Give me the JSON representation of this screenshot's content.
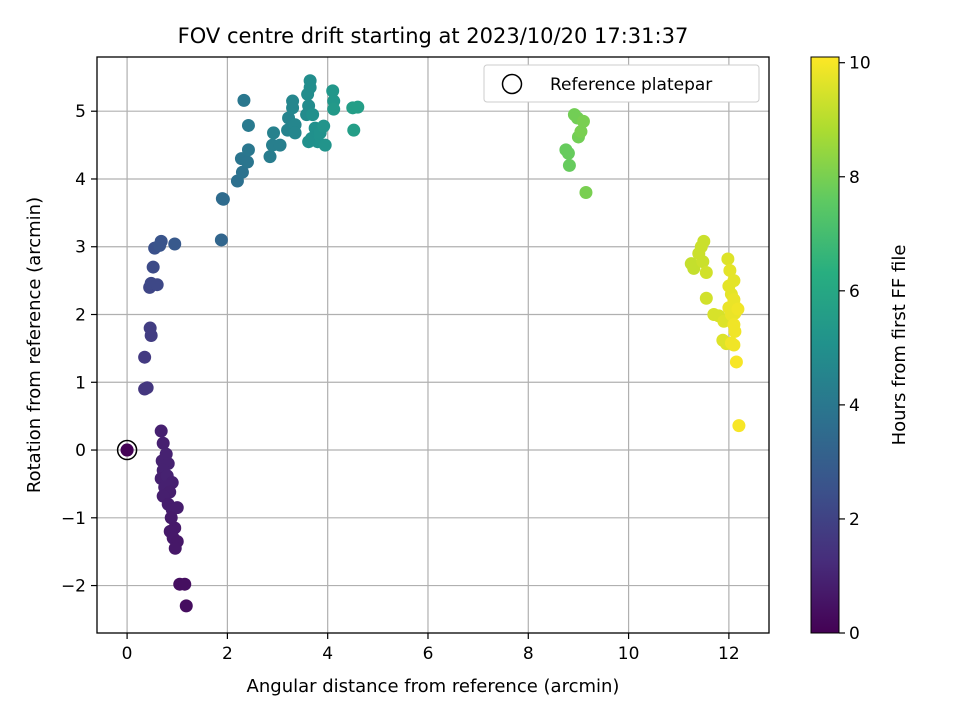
{
  "chart_data": {
    "type": "scatter",
    "title": "FOV centre drift starting at 2023/10/20 17:31:37",
    "xlabel": "Angular distance from reference (arcmin)",
    "ylabel": "Rotation from reference (arcmin)",
    "xlim": [
      -0.6,
      12.8
    ],
    "ylim": [
      -2.7,
      5.8
    ],
    "xticks": [
      0,
      2,
      4,
      6,
      8,
      10,
      12
    ],
    "yticks": [
      -2,
      -1,
      0,
      1,
      2,
      3,
      4,
      5
    ],
    "grid": true,
    "legend": {
      "position": "top-right",
      "entries": [
        "Reference platepar"
      ]
    },
    "reference_point": {
      "x": 0,
      "y": 0
    },
    "colorbar": {
      "label": "Hours from first FF file",
      "range": [
        0,
        10.1
      ],
      "ticks": [
        0,
        2,
        4,
        6,
        8,
        10
      ],
      "colormap": "viridis"
    },
    "points": [
      {
        "x": 0.0,
        "y": 0.0,
        "t": 0.0
      },
      {
        "x": 0.0,
        "y": 0.0,
        "t": 0.05
      },
      {
        "x": 0.68,
        "y": 0.28,
        "t": 0.9
      },
      {
        "x": 0.72,
        "y": 0.1,
        "t": 0.9
      },
      {
        "x": 0.78,
        "y": -0.06,
        "t": 0.95
      },
      {
        "x": 0.7,
        "y": -0.16,
        "t": 0.95
      },
      {
        "x": 0.82,
        "y": -0.2,
        "t": 0.95
      },
      {
        "x": 0.72,
        "y": -0.3,
        "t": 0.95
      },
      {
        "x": 0.68,
        "y": -0.42,
        "t": 0.9
      },
      {
        "x": 0.8,
        "y": -0.38,
        "t": 0.95
      },
      {
        "x": 0.9,
        "y": -0.48,
        "t": 0.9
      },
      {
        "x": 0.75,
        "y": -0.55,
        "t": 0.9
      },
      {
        "x": 0.85,
        "y": -0.62,
        "t": 0.85
      },
      {
        "x": 0.72,
        "y": -0.68,
        "t": 0.85
      },
      {
        "x": 0.82,
        "y": -0.8,
        "t": 0.8
      },
      {
        "x": 0.9,
        "y": -0.88,
        "t": 0.8
      },
      {
        "x": 1.0,
        "y": -0.85,
        "t": 0.8
      },
      {
        "x": 0.88,
        "y": -1.0,
        "t": 0.75
      },
      {
        "x": 0.95,
        "y": -1.15,
        "t": 0.7
      },
      {
        "x": 0.86,
        "y": -1.2,
        "t": 0.7
      },
      {
        "x": 0.92,
        "y": -1.3,
        "t": 0.7
      },
      {
        "x": 1.0,
        "y": -1.35,
        "t": 0.65
      },
      {
        "x": 0.96,
        "y": -1.45,
        "t": 0.65
      },
      {
        "x": 1.05,
        "y": -1.98,
        "t": 0.4
      },
      {
        "x": 1.15,
        "y": -1.98,
        "t": 0.4
      },
      {
        "x": 1.18,
        "y": -2.3,
        "t": 0.35
      },
      {
        "x": 0.35,
        "y": 0.9,
        "t": 1.6
      },
      {
        "x": 0.4,
        "y": 0.92,
        "t": 1.6
      },
      {
        "x": 0.35,
        "y": 1.37,
        "t": 1.7
      },
      {
        "x": 0.48,
        "y": 1.69,
        "t": 1.8
      },
      {
        "x": 0.46,
        "y": 1.8,
        "t": 1.8
      },
      {
        "x": 0.45,
        "y": 2.4,
        "t": 2.1
      },
      {
        "x": 0.48,
        "y": 2.46,
        "t": 2.2
      },
      {
        "x": 0.6,
        "y": 2.44,
        "t": 2.2
      },
      {
        "x": 0.52,
        "y": 2.7,
        "t": 2.3
      },
      {
        "x": 0.55,
        "y": 2.98,
        "t": 2.5
      },
      {
        "x": 0.65,
        "y": 3.02,
        "t": 2.6
      },
      {
        "x": 0.68,
        "y": 3.08,
        "t": 2.6
      },
      {
        "x": 0.95,
        "y": 3.04,
        "t": 2.8
      },
      {
        "x": 1.88,
        "y": 3.1,
        "t": 3.3
      },
      {
        "x": 1.9,
        "y": 3.71,
        "t": 3.5
      },
      {
        "x": 1.92,
        "y": 3.7,
        "t": 3.5
      },
      {
        "x": 2.2,
        "y": 3.97,
        "t": 3.7
      },
      {
        "x": 2.3,
        "y": 4.1,
        "t": 3.8
      },
      {
        "x": 2.28,
        "y": 4.3,
        "t": 3.9
      },
      {
        "x": 2.4,
        "y": 4.25,
        "t": 3.9
      },
      {
        "x": 2.42,
        "y": 4.43,
        "t": 4.0
      },
      {
        "x": 2.42,
        "y": 4.79,
        "t": 4.1
      },
      {
        "x": 2.33,
        "y": 5.16,
        "t": 4.0
      },
      {
        "x": 2.85,
        "y": 4.33,
        "t": 4.2
      },
      {
        "x": 2.9,
        "y": 4.5,
        "t": 4.3
      },
      {
        "x": 3.05,
        "y": 4.5,
        "t": 4.3
      },
      {
        "x": 2.92,
        "y": 4.68,
        "t": 4.4
      },
      {
        "x": 3.2,
        "y": 4.72,
        "t": 4.5
      },
      {
        "x": 3.22,
        "y": 4.9,
        "t": 4.5
      },
      {
        "x": 3.3,
        "y": 5.05,
        "t": 4.6
      },
      {
        "x": 3.3,
        "y": 5.15,
        "t": 4.6
      },
      {
        "x": 3.35,
        "y": 4.8,
        "t": 4.6
      },
      {
        "x": 3.35,
        "y": 4.68,
        "t": 4.6
      },
      {
        "x": 3.58,
        "y": 4.95,
        "t": 4.8
      },
      {
        "x": 3.62,
        "y": 5.08,
        "t": 4.8
      },
      {
        "x": 3.6,
        "y": 5.25,
        "t": 4.9
      },
      {
        "x": 3.65,
        "y": 5.35,
        "t": 4.9
      },
      {
        "x": 3.65,
        "y": 5.45,
        "t": 4.9
      },
      {
        "x": 3.7,
        "y": 4.95,
        "t": 5.0
      },
      {
        "x": 3.75,
        "y": 4.75,
        "t": 5.0
      },
      {
        "x": 3.68,
        "y": 4.6,
        "t": 5.0
      },
      {
        "x": 3.8,
        "y": 4.55,
        "t": 5.1
      },
      {
        "x": 3.62,
        "y": 4.55,
        "t": 5.0
      },
      {
        "x": 3.85,
        "y": 4.68,
        "t": 5.1
      },
      {
        "x": 3.92,
        "y": 4.78,
        "t": 5.2
      },
      {
        "x": 3.95,
        "y": 4.5,
        "t": 5.2
      },
      {
        "x": 4.1,
        "y": 5.3,
        "t": 5.3
      },
      {
        "x": 4.12,
        "y": 5.15,
        "t": 5.3
      },
      {
        "x": 4.12,
        "y": 5.03,
        "t": 5.4
      },
      {
        "x": 4.5,
        "y": 5.05,
        "t": 5.6
      },
      {
        "x": 4.6,
        "y": 5.06,
        "t": 5.6
      },
      {
        "x": 4.52,
        "y": 4.72,
        "t": 5.6
      },
      {
        "x": 8.75,
        "y": 4.43,
        "t": 7.7
      },
      {
        "x": 8.8,
        "y": 4.38,
        "t": 7.7
      },
      {
        "x": 8.82,
        "y": 4.2,
        "t": 7.7
      },
      {
        "x": 8.92,
        "y": 4.95,
        "t": 7.9
      },
      {
        "x": 8.98,
        "y": 4.9,
        "t": 7.9
      },
      {
        "x": 9.0,
        "y": 4.62,
        "t": 7.9
      },
      {
        "x": 9.05,
        "y": 4.7,
        "t": 8.0
      },
      {
        "x": 9.1,
        "y": 4.85,
        "t": 8.0
      },
      {
        "x": 9.15,
        "y": 3.8,
        "t": 8.0
      },
      {
        "x": 11.25,
        "y": 2.75,
        "t": 9.2
      },
      {
        "x": 11.3,
        "y": 2.68,
        "t": 9.2
      },
      {
        "x": 11.4,
        "y": 2.9,
        "t": 9.3
      },
      {
        "x": 11.45,
        "y": 3.0,
        "t": 9.3
      },
      {
        "x": 11.5,
        "y": 3.08,
        "t": 9.3
      },
      {
        "x": 11.48,
        "y": 2.78,
        "t": 9.3
      },
      {
        "x": 11.55,
        "y": 2.62,
        "t": 9.4
      },
      {
        "x": 11.55,
        "y": 2.24,
        "t": 9.4
      },
      {
        "x": 11.7,
        "y": 2.0,
        "t": 9.5
      },
      {
        "x": 11.8,
        "y": 1.98,
        "t": 9.5
      },
      {
        "x": 11.9,
        "y": 1.9,
        "t": 9.6
      },
      {
        "x": 11.88,
        "y": 1.62,
        "t": 9.6
      },
      {
        "x": 11.95,
        "y": 1.57,
        "t": 9.6
      },
      {
        "x": 11.98,
        "y": 2.82,
        "t": 9.6
      },
      {
        "x": 12.02,
        "y": 2.65,
        "t": 9.7
      },
      {
        "x": 12.0,
        "y": 2.42,
        "t": 9.7
      },
      {
        "x": 12.05,
        "y": 2.3,
        "t": 9.7
      },
      {
        "x": 12.1,
        "y": 2.5,
        "t": 9.7
      },
      {
        "x": 12.1,
        "y": 2.22,
        "t": 9.8
      },
      {
        "x": 12.0,
        "y": 2.1,
        "t": 9.8
      },
      {
        "x": 12.05,
        "y": 2.0,
        "t": 9.8
      },
      {
        "x": 12.12,
        "y": 2.02,
        "t": 9.8
      },
      {
        "x": 12.15,
        "y": 2.1,
        "t": 9.8
      },
      {
        "x": 12.18,
        "y": 2.08,
        "t": 9.9
      },
      {
        "x": 12.1,
        "y": 1.85,
        "t": 9.9
      },
      {
        "x": 12.12,
        "y": 1.75,
        "t": 9.9
      },
      {
        "x": 12.05,
        "y": 1.58,
        "t": 9.9
      },
      {
        "x": 12.1,
        "y": 1.55,
        "t": 9.9
      },
      {
        "x": 12.15,
        "y": 1.3,
        "t": 10.0
      },
      {
        "x": 12.2,
        "y": 0.36,
        "t": 10.0
      }
    ]
  }
}
